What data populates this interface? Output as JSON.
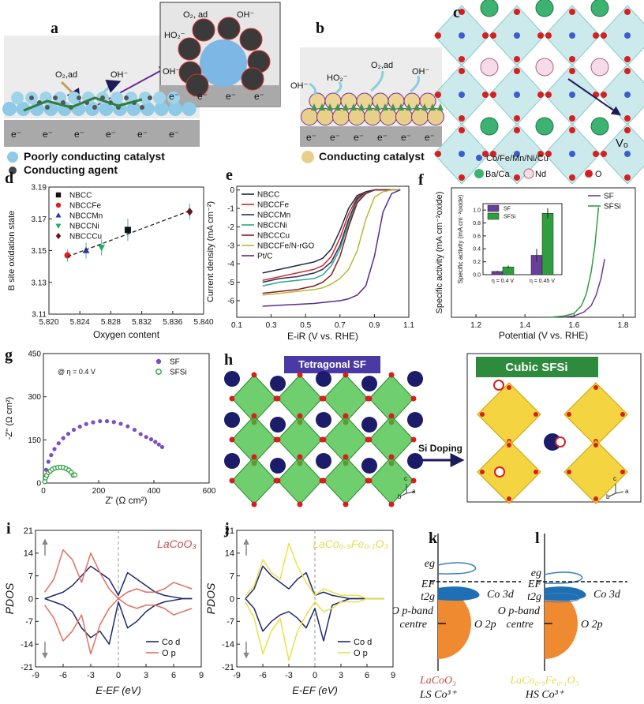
{
  "figure": {
    "a": {
      "label": "a",
      "o2": "O₂,ad",
      "oh": "OH⁻",
      "electrons": [
        "e⁻",
        "e⁻",
        "e⁻",
        "e⁻",
        "e⁻",
        "e⁻"
      ],
      "inset": {
        "o2": "O₂, ad",
        "oh_top": "OH⁻",
        "ho2": "HO₂⁻",
        "oh_left": "OH⁻",
        "electrons": [
          "e⁻",
          "e⁻",
          "e⁻",
          "e⁻"
        ]
      }
    },
    "b": {
      "label": "b",
      "oh_left": "OH⁻",
      "ho2": "HO₂⁻",
      "o2": "O₂,ad",
      "oh_right": "OH⁻",
      "electrons": [
        "e⁻",
        "e⁻",
        "e⁻",
        "e⁻",
        "e⁻",
        "e⁻"
      ]
    },
    "legend": {
      "poor": "Poorly conducting catalyst",
      "agent": "Conducting agent",
      "conducting": "Conducting catalyst"
    },
    "c": {
      "label": "c",
      "vacancy": "Vₒ",
      "legend": [
        "Co/Fe/Mn/Ni/Cu",
        "Ba/Ca",
        "Nd",
        "O"
      ]
    },
    "h": {
      "label": "h",
      "left_title": "Tetragonal SF",
      "arrow": "Si Doping",
      "right_title": "Cubic SFSi",
      "axes_left": [
        "c",
        "a",
        "b"
      ],
      "axes_right": [
        "c",
        "a",
        "b"
      ]
    },
    "k": {
      "label": "k",
      "eg": "eg",
      "ef": "EF",
      "t2g": "t2g",
      "co": "Co 3d",
      "op": [
        "O p-band",
        "centre"
      ],
      "o2p": "O 2p",
      "compound": "LaCoO₃",
      "spin": "LS Co³⁺"
    },
    "l": {
      "label": "l",
      "eg": "eg",
      "ef": "EF",
      "t2g": "t2g",
      "co": "Co 3d",
      "op": [
        "O p-band",
        "centre"
      ],
      "o2p": "O 2p",
      "compound": "LaCo₀.₉Fe₀.₁O₃",
      "spin": "HS Co³⁺"
    }
  },
  "chart_data": [
    {
      "panel": "d",
      "type": "scatter",
      "xlabel": "Oxygen content",
      "ylabel": "B site oxidation state",
      "xlim": [
        5.82,
        5.84
      ],
      "xticks": [
        {
          "value": 5.82,
          "label": "5.820"
        },
        5.824,
        5.828,
        5.832,
        5.836,
        {
          "value": 5.84,
          "label": "5.840"
        }
      ],
      "ylim": [
        3.11,
        3.19
      ],
      "yticks": [
        3.11,
        3.13,
        3.15,
        3.17,
        3.19
      ],
      "legend": "upper left",
      "fit_line": "dashed",
      "series": [
        {
          "name": "NBCC",
          "color": "#111111",
          "marker": "square",
          "x": [
            5.8302
          ],
          "values": [
            3.163
          ],
          "errors": [
            0.007
          ]
        },
        {
          "name": "NBCCFe",
          "color": "#e02020",
          "marker": "circle",
          "x": [
            5.8224
          ],
          "values": [
            3.147
          ],
          "errors": [
            0.004
          ]
        },
        {
          "name": "NBCCMn",
          "color": "#1f3f9f",
          "marker": "triangle",
          "x": [
            5.8248
          ],
          "values": [
            3.15
          ],
          "errors": [
            0.005
          ]
        },
        {
          "name": "NBCCNi",
          "color": "#1fae5a",
          "marker": "triangle-down",
          "x": [
            5.8268
          ],
          "values": [
            3.152
          ],
          "errors": [
            0.005
          ]
        },
        {
          "name": "NBCCCu",
          "color": "#6b1520",
          "marker": "diamond",
          "x": [
            5.8382
          ],
          "values": [
            3.1745
          ],
          "errors": [
            0.005
          ]
        }
      ]
    },
    {
      "panel": "e",
      "type": "line",
      "xlabel": "E-iR (V vs. RHE)",
      "ylabel": "Current density (mA cm⁻²)",
      "xlim": [
        0.1,
        1.1
      ],
      "xticks": [
        0.1,
        0.3,
        0.5,
        0.7,
        0.9,
        1.1
      ],
      "ylim": [
        -6.9,
        0.2
      ],
      "yticks": [
        0,
        -1,
        -2,
        -3,
        -4,
        -5,
        -6
      ],
      "legend": "upper left",
      "x": [
        0.25,
        0.35,
        0.45,
        0.55,
        0.6,
        0.65,
        0.7,
        0.75,
        0.8,
        0.85,
        0.9,
        0.95,
        1.0,
        1.05
      ],
      "series": [
        {
          "name": "NBCC",
          "color": "#1f2a44",
          "values": [
            -4.5,
            -4.3,
            -4.1,
            -3.9,
            -3.7,
            -3.2,
            -2.2,
            -1.0,
            -0.3,
            -0.1,
            0,
            0,
            0,
            0
          ]
        },
        {
          "name": "NBCCFe",
          "color": "#d62728",
          "values": [
            -4.9,
            -4.7,
            -4.5,
            -4.3,
            -4.1,
            -3.6,
            -2.6,
            -1.3,
            -0.4,
            -0.1,
            0,
            0,
            0,
            0
          ]
        },
        {
          "name": "NBCCMn",
          "color": "#2b2b5a",
          "values": [
            -5.0,
            -4.8,
            -4.7,
            -4.5,
            -4.3,
            -3.9,
            -3.0,
            -1.6,
            -0.5,
            -0.1,
            0,
            0,
            0,
            0
          ]
        },
        {
          "name": "NBCCNi",
          "color": "#2ca58d",
          "values": [
            -5.2,
            -5.0,
            -4.9,
            -4.8,
            -4.6,
            -4.1,
            -3.2,
            -1.8,
            -0.6,
            -0.2,
            0,
            0,
            0,
            0
          ]
        },
        {
          "name": "NBCCCu",
          "color": "#8b1a1a",
          "values": [
            -5.6,
            -5.5,
            -5.4,
            -5.2,
            -5.0,
            -4.6,
            -3.6,
            -2.0,
            -0.7,
            -0.2,
            0,
            0,
            0,
            0
          ]
        },
        {
          "name": "NBCCFe/N-rGO",
          "color": "#b5b835",
          "values": [
            -5.7,
            -5.6,
            -5.5,
            -5.4,
            -5.3,
            -5.1,
            -4.8,
            -4.3,
            -3.3,
            -1.6,
            -0.4,
            -0.1,
            0,
            0
          ]
        },
        {
          "name": "Pt/C",
          "color": "#5b2a86",
          "values": [
            -6.3,
            -6.25,
            -6.2,
            -6.15,
            -6.1,
            -6.05,
            -6.0,
            -5.9,
            -5.7,
            -5.2,
            -3.6,
            -1.2,
            -0.2,
            0
          ]
        }
      ]
    },
    {
      "panel": "f",
      "type": "line",
      "xlabel": "Potential (V vs. RHE)",
      "ylabel": "Specific activity (mA cm⁻²oxide)",
      "xlim": [
        1.1,
        1.85
      ],
      "xticks": [
        1.2,
        1.4,
        1.6,
        1.8
      ],
      "ylim": [
        0,
        1
      ],
      "legend": "upper right",
      "series": [
        {
          "name": "SF",
          "color": "#6a3d9a",
          "x": [
            1.55,
            1.6,
            1.64,
            1.67,
            1.69,
            1.71,
            1.725
          ],
          "values": [
            0,
            0.01,
            0.04,
            0.09,
            0.17,
            0.3,
            0.45
          ]
        },
        {
          "name": "SFSi",
          "color": "#2e9e3e",
          "x": [
            1.5,
            1.56,
            1.6,
            1.63,
            1.65,
            1.67,
            1.685,
            1.7
          ],
          "values": [
            0,
            0.01,
            0.03,
            0.09,
            0.18,
            0.35,
            0.55,
            0.85
          ]
        }
      ]
    },
    {
      "type": "bar",
      "ylabel": "Specific activity (mA cm⁻²oxide)",
      "categories": [
        "η = 0.4 V",
        "η = 0.45 V"
      ],
      "ylim": [
        0,
        1.1
      ],
      "yticks": [
        {
          "value": 0,
          "label": "0.0"
        },
        0.2,
        0.4,
        0.6,
        0.8,
        {
          "value": 1,
          "label": "1.0"
        }
      ],
      "legend": "upper left",
      "series": [
        {
          "name": "SF",
          "color": "#6a3d9a",
          "values": [
            0.05,
            0.3
          ],
          "errors": [
            0.01,
            0.1
          ]
        },
        {
          "name": "SFSi",
          "color": "#2e9e3e",
          "values": [
            0.12,
            0.95
          ],
          "errors": [
            0.02,
            0.08
          ]
        }
      ]
    },
    {
      "panel": "g",
      "type": "scatter",
      "xlabel": "Z' (Ω cm²)",
      "ylabel": "-Z'' (Ω cm²)",
      "annotation": "@ η = 0.4 V",
      "xlim": [
        0,
        600
      ],
      "xticks": [
        0,
        200,
        400,
        600
      ],
      "ylim": [
        0,
        450
      ],
      "yticks": [
        0,
        150,
        300,
        450
      ],
      "legend": "upper right",
      "series": [
        {
          "name": "SF",
          "color": "#7b4fc2",
          "marker": "circle",
          "x": [
            5,
            10,
            18,
            28,
            40,
            55,
            72,
            90,
            110,
            132,
            155,
            180,
            205,
            230,
            255,
            280,
            305,
            330,
            352,
            372,
            390,
            405,
            418,
            430
          ],
          "values": [
            15,
            46,
            74,
            97,
            118,
            138,
            156,
            171,
            185,
            196,
            205,
            211,
            215,
            215,
            212,
            206,
            197,
            185,
            170,
            160,
            152,
            143,
            134,
            125
          ]
        },
        {
          "name": "SFSi",
          "color": "#2e9e3e",
          "marker": "open-circle",
          "x": [
            5,
            8,
            12,
            18,
            25,
            33,
            42,
            52,
            62,
            72,
            82,
            92,
            101,
            108,
            114
          ],
          "values": [
            5,
            18,
            27,
            36,
            42,
            48,
            52,
            54,
            55,
            54,
            50,
            45,
            37,
            27,
            28
          ]
        }
      ]
    },
    {
      "panel": "i",
      "type": "line",
      "xlabel": "E-EF (eV)",
      "ylabel": "PDOS",
      "annotation": "LaCoO₃",
      "annotation_color": "#c0504d",
      "xlim": [
        -9,
        9
      ],
      "xticks": [
        -9,
        -6,
        -3,
        0,
        3,
        6,
        9
      ],
      "ylim": [
        -21,
        21
      ],
      "yticks": [
        -21,
        -14,
        -7,
        0,
        7,
        14,
        21
      ],
      "legend": "lower right",
      "fermi_line": true,
      "x": [
        -8,
        -7,
        -6,
        -5,
        -4,
        -3,
        -2,
        -1,
        0,
        1,
        2,
        3,
        4,
        5,
        6,
        7,
        8
      ],
      "series": [
        {
          "name": "Co d",
          "color": "#1f2a6b",
          "values": [
            0,
            1,
            2,
            4,
            7,
            10,
            8,
            6,
            1,
            8,
            6,
            4,
            2,
            1,
            0.5,
            0,
            0
          ],
          "down": [
            0,
            -1,
            -2,
            -4,
            -9,
            -12,
            -10,
            -14,
            -1,
            -9,
            -7,
            -4,
            -2,
            -1,
            -0.5,
            0,
            0
          ]
        },
        {
          "name": "O p",
          "color": "#e0705f",
          "values": [
            2,
            6,
            15,
            12,
            5,
            14,
            8,
            3,
            0,
            2,
            3,
            2,
            2,
            3,
            5,
            4,
            3
          ],
          "down": [
            -2,
            -6,
            -13,
            -10,
            -5,
            -17,
            -8,
            -3,
            0,
            -2,
            -3,
            -2,
            -2,
            -3,
            -5,
            -4,
            -3
          ]
        }
      ]
    },
    {
      "panel": "j",
      "type": "line",
      "xlabel": "E-EF (eV)",
      "ylabel": "PDOS",
      "annotation": "LaCo₀.₉Fe₀.₁O₃",
      "annotation_color": "#e3dc55",
      "xlim": [
        -9,
        9
      ],
      "xticks": [
        -9,
        -6,
        -3,
        0,
        3,
        6,
        9
      ],
      "ylim": [
        -21,
        21
      ],
      "yticks": [
        -21,
        -14,
        -7,
        0,
        7,
        14,
        21
      ],
      "legend": "lower right",
      "fermi_line": true,
      "x": [
        -8,
        -7,
        -6,
        -5,
        -4,
        -3,
        -2,
        -1,
        0,
        1,
        2,
        3,
        4,
        5,
        6,
        7,
        8
      ],
      "series": [
        {
          "name": "Co d",
          "color": "#1f2a6b",
          "values": [
            0,
            3,
            10,
            7,
            5,
            3,
            6,
            8,
            1,
            2,
            1,
            0.5,
            0,
            0,
            0,
            0,
            0
          ],
          "down": [
            0,
            -3,
            -10,
            -7,
            -5,
            -4,
            -6,
            -9,
            -3,
            -13,
            -2,
            -1,
            0,
            0,
            0,
            0,
            0
          ]
        },
        {
          "name": "O p",
          "color": "#e8e24a",
          "values": [
            1,
            4,
            12,
            8,
            6,
            17,
            10,
            5,
            1,
            3,
            2,
            1,
            1,
            1,
            0,
            0,
            0
          ],
          "down": [
            -1,
            -6,
            -17,
            -10,
            -6,
            -19,
            -10,
            -5,
            -1,
            -4,
            -3,
            -1,
            -1,
            -1,
            0,
            0,
            0
          ]
        }
      ]
    }
  ]
}
